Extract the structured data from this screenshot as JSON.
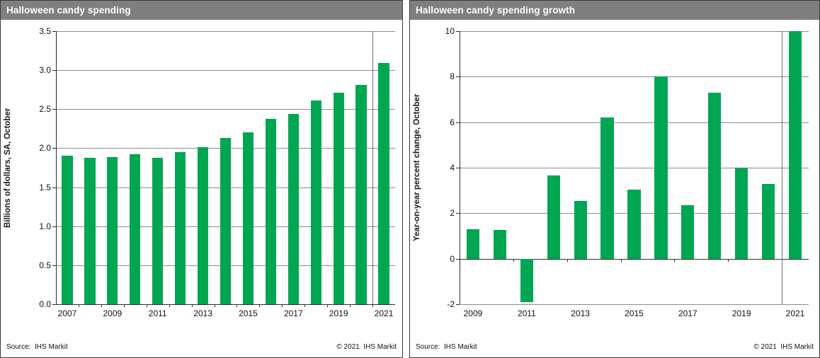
{
  "chart_data": [
    {
      "type": "bar",
      "title": "Halloween candy spending",
      "ylabel": "Billions of dollars, SA, October",
      "categories": [
        "2007",
        "2008",
        "2009",
        "2010",
        "2011",
        "2012",
        "2013",
        "2014",
        "2015",
        "2016",
        "2017",
        "2018",
        "2019",
        "2020",
        "2021"
      ],
      "values": [
        1.9,
        1.88,
        1.89,
        1.92,
        1.88,
        1.95,
        2.01,
        2.13,
        2.2,
        2.38,
        2.44,
        2.61,
        2.71,
        2.81,
        3.09
      ],
      "ylim": [
        0,
        3.5
      ],
      "ytick_values": [
        0,
        0.5,
        1.0,
        1.5,
        2.0,
        2.5,
        3.0,
        3.5
      ],
      "ytick_labels": [
        "0.0",
        "0.5",
        "1.0",
        "1.5",
        "2.0",
        "2.5",
        "3.0",
        "3.5"
      ],
      "xtick_labels": [
        "2007",
        "2009",
        "2011",
        "2013",
        "2015",
        "2017",
        "2019",
        "2021"
      ],
      "xtick_every": 1,
      "grid": true,
      "legend": "none",
      "bar_color": "#00a651",
      "divider_between_last_two_bars": true,
      "source": "Source:  IHS Markit",
      "copyright": "© 2021  IHS Markit"
    },
    {
      "type": "bar",
      "title": "Halloween candy spending growth",
      "ylabel": "Year-on-year percent change, October",
      "categories": [
        "2009",
        "2010",
        "2011",
        "2012",
        "2013",
        "2014",
        "2015",
        "2016",
        "2017",
        "2018",
        "2019",
        "2020",
        "2021"
      ],
      "values": [
        1.3,
        1.25,
        -1.9,
        3.65,
        2.55,
        6.2,
        3.05,
        8.0,
        2.35,
        7.3,
        4.0,
        3.3,
        10.0
      ],
      "ylim": [
        -2,
        10
      ],
      "ytick_values": [
        -2,
        0,
        2,
        4,
        6,
        8,
        10
      ],
      "ytick_labels": [
        "-2",
        "0",
        "2",
        "4",
        "6",
        "8",
        "10"
      ],
      "xtick_labels": [
        "2009",
        "2011",
        "2013",
        "2015",
        "2017",
        "2019",
        "2021"
      ],
      "xtick_every": 2,
      "grid": true,
      "legend": "none",
      "bar_color": "#00a651",
      "divider_between_last_two_bars": true,
      "source": "Source:  IHS Markit",
      "copyright": "© 2021  IHS Markit"
    }
  ]
}
